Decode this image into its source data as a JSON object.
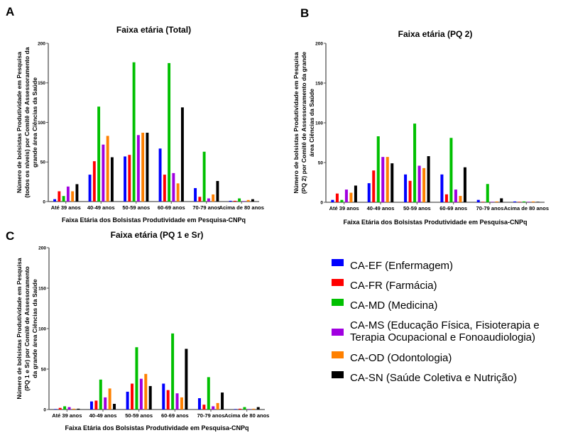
{
  "legend": {
    "items": [
      {
        "key": "EF",
        "lines": [
          "CA-EF (Enfermagem)"
        ],
        "color": "#0000ff"
      },
      {
        "key": "FR",
        "lines": [
          "CA-FR (Farmácia)"
        ],
        "color": "#ff0000"
      },
      {
        "key": "MD",
        "lines": [
          "CA-MD (Medicina)"
        ],
        "color": "#00c000"
      },
      {
        "key": "MS",
        "lines": [
          "CA-MS (Educação Física, Fisioterapia e",
          "Terapia Ocupacional e Fonoaudiologia)"
        ],
        "color": "#a000e0"
      },
      {
        "key": "OD",
        "lines": [
          "CA-OD (Odontologia)"
        ],
        "color": "#ff8000"
      },
      {
        "key": "SN",
        "lines": [
          "CA-SN (Saúde Coletiva e Nutrição)"
        ],
        "color": "#000000"
      }
    ]
  },
  "chart_data": [
    {
      "panel": "A",
      "type": "bar",
      "title": "Faixa etária (Total)",
      "xlabel": "Faixa Etária dos Bolsistas Produtividade em Pesquisa-CNPq",
      "ylabel_lines": [
        "Número de bolsistas Produtividade em Pesquisa",
        "(todos os níveis) por Comitê de  Assessoramento da",
        "grande área Ciências da Saúde"
      ],
      "ylim": [
        0,
        200
      ],
      "yticks": [
        0,
        50,
        100,
        150,
        200
      ],
      "grid": false,
      "categories": [
        "Até 39 anos",
        "40-49 anos",
        "50-59 anos",
        "60-69 anos",
        "70-79 anos",
        "Acima de 80 anos"
      ],
      "series": [
        {
          "name": "CA-EF (Enfermagem)",
          "values": [
            3,
            34,
            57,
            67,
            17,
            1
          ]
        },
        {
          "name": "CA-FR (Farmácia)",
          "values": [
            13,
            51,
            59,
            34,
            6,
            1
          ]
        },
        {
          "name": "CA-MD (Medicina)",
          "values": [
            7,
            120,
            176,
            175,
            63,
            4
          ]
        },
        {
          "name": "CA-MS (Educação Física, Fisioterapia e Terapia Ocupacional e Fonoaudiologia)",
          "values": [
            19,
            72,
            84,
            36,
            4,
            0
          ]
        },
        {
          "name": "CA-OD (Odontologia)",
          "values": [
            13,
            83,
            87,
            23,
            9,
            2
          ]
        },
        {
          "name": "CA-SN (Saúde Coletiva e Nutrição)",
          "values": [
            22,
            56,
            87,
            119,
            26,
            3
          ]
        }
      ]
    },
    {
      "panel": "B",
      "type": "bar",
      "title": "Faixa etária (PQ 2)",
      "xlabel": "Faixa Etária dos Bolsistas Produtividade em Pesquisa-CNPq",
      "ylabel_lines": [
        "Número de bolsistas Produtividade em Pesquisa",
        "(PQ 2) por Comitê de  Assessoramento da grande",
        "área Ciências da Saúde"
      ],
      "ylim": [
        0,
        200
      ],
      "yticks": [
        0,
        50,
        100,
        150,
        200
      ],
      "grid": false,
      "categories": [
        "Até 39 anos",
        "40-49 anos",
        "50-59 anos",
        "60-69 anos",
        "70-79 anos",
        "Acima de 80 anos"
      ],
      "series": [
        {
          "name": "CA-EF (Enfermagem)",
          "values": [
            3,
            24,
            35,
            35,
            3,
            1
          ]
        },
        {
          "name": "CA-FR (Farmácia)",
          "values": [
            11,
            40,
            27,
            10,
            0,
            0
          ]
        },
        {
          "name": "CA-MD (Medicina)",
          "values": [
            3,
            83,
            99,
            81,
            23,
            1
          ]
        },
        {
          "name": "CA-MS (Educação Física, Fisioterapia e Terapia Ocupacional e Fonoaudiologia)",
          "values": [
            16,
            57,
            46,
            16,
            0,
            0
          ]
        },
        {
          "name": "CA-OD (Odontologia)",
          "values": [
            12,
            57,
            43,
            8,
            1,
            1
          ]
        },
        {
          "name": "CA-SN (Saúde Coletiva e Nutrição)",
          "values": [
            21,
            49,
            58,
            44,
            5,
            0
          ]
        }
      ]
    },
    {
      "panel": "C",
      "type": "bar",
      "title": "Faixa etária (PQ 1 e Sr)",
      "xlabel": "Faixa Etária dos Bolsistas Produtividade em Pesquisa-CNPq",
      "ylabel_lines": [
        "Número de bolsistas Produtividade em Pesquisa",
        "(PQ 1 e Sr) por Comitê de  Assessoramento",
        "da grande área Ciências da Saúde"
      ],
      "ylim": [
        0,
        200
      ],
      "yticks": [
        0,
        50,
        100,
        150,
        200
      ],
      "grid": false,
      "categories": [
        "Até 39 anos",
        "40-49 anos",
        "50-59 anos",
        "60-69 anos",
        "70-79 anos",
        "Acima de 80 anos"
      ],
      "series": [
        {
          "name": "CA-EF (Enfermagem)",
          "values": [
            0,
            10,
            22,
            32,
            14,
            0
          ]
        },
        {
          "name": "CA-FR (Farmácia)",
          "values": [
            2,
            11,
            32,
            24,
            6,
            1
          ]
        },
        {
          "name": "CA-MD (Medicina)",
          "values": [
            4,
            37,
            77,
            94,
            40,
            3
          ]
        },
        {
          "name": "CA-MS (Educação Física, Fisioterapia e Terapia Ocupacional e Fonoaudiologia)",
          "values": [
            3,
            15,
            38,
            20,
            4,
            0
          ]
        },
        {
          "name": "CA-OD (Odontologia)",
          "values": [
            1,
            26,
            44,
            15,
            8,
            1
          ]
        },
        {
          "name": "CA-SN (Saúde Coletiva e Nutrição)",
          "values": [
            1,
            7,
            29,
            75,
            21,
            3
          ]
        }
      ]
    }
  ]
}
